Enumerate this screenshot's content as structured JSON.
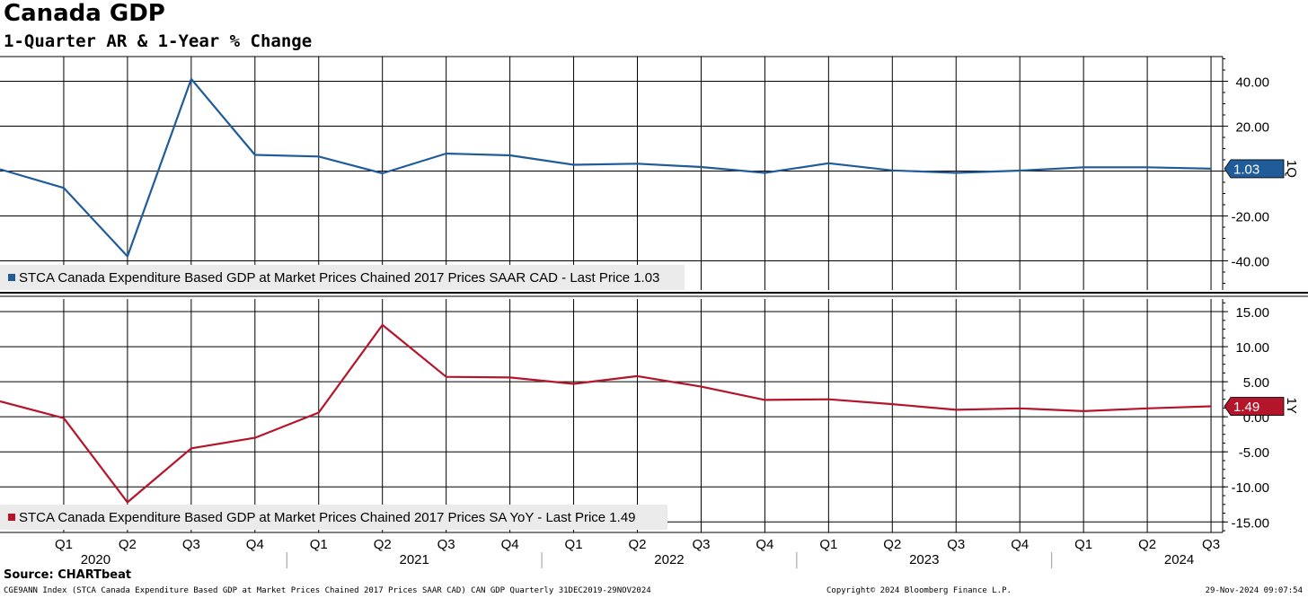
{
  "header": {
    "title": "Canada GDP",
    "subtitle": "1-Quarter AR & 1-Year % Change"
  },
  "footer": {
    "source": "Source: CHARTbeat",
    "index_note": "CGE9ANN Index (STCA Canada Expenditure Based GDP at Market Prices Chained 2017 Prices SAAR CAD) CAN GDP  Quarterly 31DEC2019-29NOV2024",
    "copyright": "Copyright© 2024 Bloomberg Finance L.P.",
    "timestamp": "29-Nov-2024 09:07:54"
  },
  "chart_data": [
    {
      "type": "line",
      "panel_label": "1Q",
      "legend": "STCA Canada Expenditure Based GDP at Market Prices Chained 2017 Prices SAAR CAD - Last Price 1.03",
      "last_price": "1.03",
      "color": "#1f5c99",
      "ylim": [
        -53,
        51
      ],
      "yticks": [
        40,
        20,
        0,
        -20,
        -40
      ],
      "ytick_labels": [
        "40.00",
        "20.00",
        "",
        "-20.00",
        "-40.00"
      ],
      "x": [
        "2019 Q4",
        "2020 Q1",
        "2020 Q2",
        "2020 Q3",
        "2020 Q4",
        "2021 Q1",
        "2021 Q2",
        "2021 Q3",
        "2021 Q4",
        "2022 Q1",
        "2022 Q2",
        "2022 Q3",
        "2022 Q4",
        "2023 Q1",
        "2023 Q2",
        "2023 Q3",
        "2023 Q4",
        "2024 Q1",
        "2024 Q2",
        "2024 Q3"
      ],
      "values": [
        0.8,
        -7.5,
        -38,
        41,
        7.2,
        6.5,
        -1.0,
        7.8,
        7.0,
        2.8,
        3.3,
        1.8,
        -0.8,
        3.5,
        0.3,
        -0.8,
        0.2,
        1.7,
        1.7,
        1.03
      ]
    },
    {
      "type": "line",
      "panel_label": "1Y",
      "legend": "STCA Canada Expenditure Based GDP at Market Prices Chained 2017 Prices SA YoY - Last Price 1.49",
      "last_price": "1.49",
      "color": "#b5152b",
      "ylim": [
        -16.5,
        16.8
      ],
      "yticks": [
        15,
        10,
        5,
        0,
        -5,
        -10,
        -15
      ],
      "ytick_labels": [
        "15.00",
        "10.00",
        "5.00",
        "0.00",
        "-5.00",
        "-10.00",
        "-15.00"
      ],
      "x": [
        "2019 Q4",
        "2020 Q1",
        "2020 Q2",
        "2020 Q3",
        "2020 Q4",
        "2021 Q1",
        "2021 Q2",
        "2021 Q3",
        "2021 Q4",
        "2022 Q1",
        "2022 Q2",
        "2022 Q3",
        "2022 Q4",
        "2023 Q1",
        "2023 Q2",
        "2023 Q3",
        "2023 Q4",
        "2024 Q1",
        "2024 Q2",
        "2024 Q3"
      ],
      "values": [
        2.2,
        -0.2,
        -12.2,
        -4.5,
        -3.0,
        0.6,
        13.1,
        5.7,
        5.6,
        4.7,
        5.8,
        4.3,
        2.4,
        2.5,
        1.8,
        1.0,
        1.2,
        0.8,
        1.2,
        1.49
      ]
    }
  ],
  "x_axis": {
    "quarter_labels": [
      "Q1",
      "Q2",
      "Q3",
      "Q4",
      "Q1",
      "Q2",
      "Q3",
      "Q4",
      "Q1",
      "Q2",
      "Q3",
      "Q4",
      "Q1",
      "Q2",
      "Q3",
      "Q4",
      "Q1",
      "Q2",
      "Q3"
    ],
    "year_labels": [
      "2020",
      "2021",
      "2022",
      "2023",
      "2024"
    ]
  }
}
